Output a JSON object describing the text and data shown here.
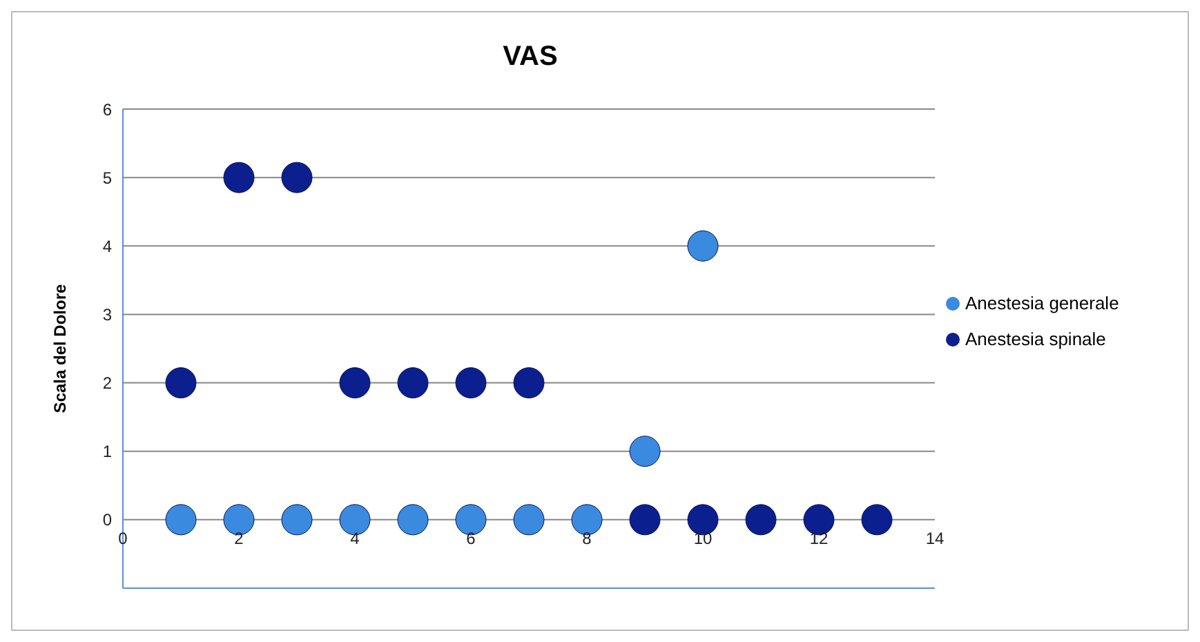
{
  "chart_data": {
    "type": "scatter",
    "title": "VAS",
    "ylabel": "Scala del Dolore",
    "xlim": [
      0,
      14
    ],
    "xticks": [
      0,
      2,
      4,
      6,
      8,
      10,
      12,
      14
    ],
    "ylim": [
      -1,
      6
    ],
    "yticks": [
      0,
      1,
      2,
      3,
      4,
      5,
      6
    ],
    "grid": "y",
    "legend": "right",
    "marker": "circle",
    "series": [
      {
        "name": "Anestesia spinale",
        "color": "#0b1f8f",
        "x": [
          1,
          2,
          3,
          4,
          5,
          6,
          7,
          9,
          10,
          11,
          12,
          13
        ],
        "values": [
          2,
          5,
          5,
          2,
          2,
          2,
          2,
          0,
          0,
          0,
          0,
          0
        ]
      },
      {
        "name": "Anestesia generale",
        "color": "#3a8ae0",
        "x": [
          1,
          2,
          3,
          4,
          5,
          6,
          7,
          8,
          9,
          10
        ],
        "values": [
          0,
          0,
          0,
          0,
          0,
          0,
          0,
          0,
          1,
          4
        ]
      }
    ]
  }
}
